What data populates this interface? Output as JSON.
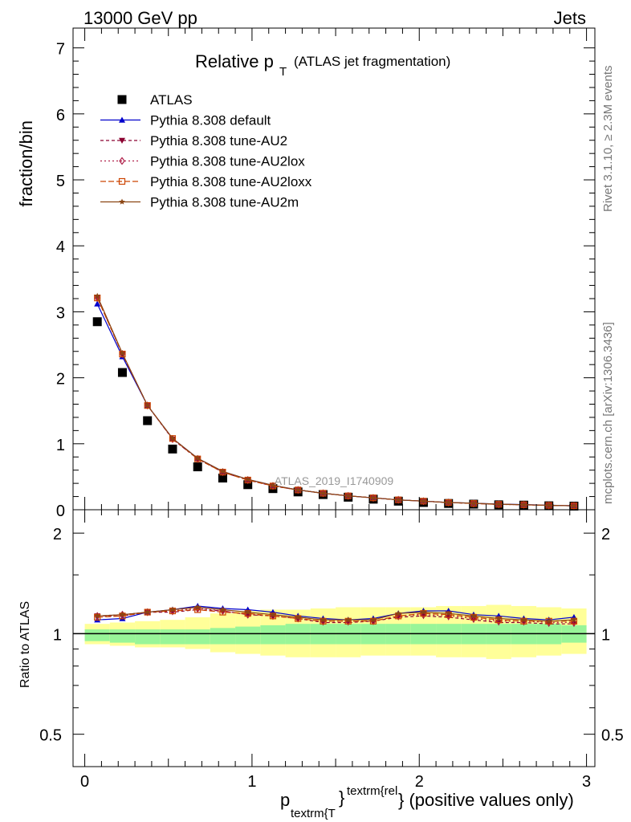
{
  "header": {
    "energy_label": "13000 GeV pp",
    "process_label": "Jets",
    "title_main": "Relative p",
    "title_sub": "T",
    "title_note": "(ATLAS jet fragmentation)",
    "ylabel": "fraction/bin",
    "ratio_ylabel": "Ratio to ATLAS",
    "xlabel_main": "p",
    "xlabel_sub": "textrm{T",
    "xlabel_sup": "textrm{rel",
    "xlabel_tail": "} (positive values only)",
    "xlabel_brace": "}",
    "analysis_id": "ATLAS_2019_I1740909",
    "side_rivet": "Rivet 3.1.10, ≥ 2.3M events",
    "side_mcplots": "mcplots.cern.ch [arXiv:1306.3436]"
  },
  "colors": {
    "data": "#000000",
    "default": "#0000cc",
    "au2": "#8b0030",
    "au2lox": "#b0204a",
    "au2loxx": "#cc4400",
    "au2m": "#8b4513",
    "band_inner": "#98f598",
    "band_outer": "#ffff99"
  },
  "chart_data": [
    {
      "type": "scatter",
      "title": "Relative p_T (ATLAS jet fragmentation)",
      "xlabel": "p_textrm{T}^textrm{rel} (positive values only)",
      "ylabel": "fraction/bin",
      "xlim": [
        -0.07,
        3.05
      ],
      "ylim": [
        0,
        7.3
      ],
      "yticks": [
        "0",
        "1",
        "2",
        "3",
        "4",
        "5",
        "6",
        "7"
      ],
      "xticks": [
        "0",
        "1",
        "2",
        "3"
      ],
      "legend_position": "top-left",
      "x": [
        0.075,
        0.225,
        0.375,
        0.525,
        0.675,
        0.825,
        0.975,
        1.125,
        1.275,
        1.425,
        1.575,
        1.725,
        1.875,
        2.025,
        2.175,
        2.325,
        2.475,
        2.625,
        2.775,
        2.925
      ],
      "series": [
        {
          "name": "ATLAS",
          "marker": "square",
          "values": [
            2.85,
            2.08,
            1.35,
            0.92,
            0.65,
            0.48,
            0.38,
            0.32,
            0.27,
            0.23,
            0.19,
            0.16,
            0.13,
            0.11,
            0.095,
            0.085,
            0.075,
            0.07,
            0.06,
            0.055
          ]
        },
        {
          "name": "Pythia 8.308 default",
          "marker": "triangle-up",
          "values": [
            3.12,
            2.32,
            1.58,
            1.08,
            0.78,
            0.58,
            0.46,
            0.37,
            0.3,
            0.25,
            0.21,
            0.18,
            0.15,
            0.13,
            0.11,
            0.1,
            0.085,
            0.078,
            0.068,
            0.06
          ]
        },
        {
          "name": "Pythia 8.308 tune-AU2",
          "marker": "triangle-down",
          "values": [
            3.22,
            2.36,
            1.58,
            1.07,
            0.77,
            0.57,
            0.45,
            0.36,
            0.3,
            0.25,
            0.21,
            0.18,
            0.15,
            0.13,
            0.11,
            0.095,
            0.082,
            0.076,
            0.066,
            0.06
          ]
        },
        {
          "name": "Pythia 8.308 tune-AU2lox",
          "marker": "diamond",
          "values": [
            3.21,
            2.36,
            1.58,
            1.07,
            0.77,
            0.57,
            0.45,
            0.36,
            0.3,
            0.25,
            0.21,
            0.18,
            0.15,
            0.13,
            0.11,
            0.095,
            0.082,
            0.076,
            0.066,
            0.06
          ]
        },
        {
          "name": "Pythia 8.308 tune-AU2loxx",
          "marker": "square-open",
          "values": [
            3.21,
            2.36,
            1.58,
            1.08,
            0.77,
            0.57,
            0.45,
            0.36,
            0.3,
            0.25,
            0.21,
            0.18,
            0.15,
            0.13,
            0.11,
            0.095,
            0.082,
            0.076,
            0.066,
            0.06
          ]
        },
        {
          "name": "Pythia 8.308 tune-AU2m",
          "marker": "star",
          "values": [
            3.24,
            2.37,
            1.58,
            1.08,
            0.78,
            0.58,
            0.46,
            0.37,
            0.3,
            0.25,
            0.21,
            0.18,
            0.15,
            0.13,
            0.11,
            0.098,
            0.084,
            0.077,
            0.067,
            0.06
          ]
        }
      ]
    },
    {
      "type": "line",
      "ylabel": "Ratio to ATLAS",
      "xlim": [
        -0.07,
        3.05
      ],
      "ylim": [
        0.4,
        2.35
      ],
      "yscale": "log",
      "yticks": [
        "0.5",
        "1",
        "2"
      ],
      "x": [
        0.075,
        0.225,
        0.375,
        0.525,
        0.675,
        0.825,
        0.975,
        1.125,
        1.275,
        1.425,
        1.575,
        1.725,
        1.875,
        2.025,
        2.175,
        2.325,
        2.475,
        2.625,
        2.775,
        2.925
      ],
      "bands": {
        "inner_low": [
          0.95,
          0.94,
          0.93,
          0.93,
          0.93,
          0.93,
          0.93,
          0.93,
          0.93,
          0.93,
          0.93,
          0.93,
          0.93,
          0.93,
          0.93,
          0.93,
          0.93,
          0.93,
          0.93,
          0.94
        ],
        "inner_high": [
          1.03,
          1.03,
          1.03,
          1.03,
          1.03,
          1.04,
          1.05,
          1.06,
          1.07,
          1.07,
          1.07,
          1.07,
          1.07,
          1.07,
          1.07,
          1.07,
          1.07,
          1.07,
          1.07,
          1.06
        ],
        "outer_low": [
          0.93,
          0.92,
          0.91,
          0.91,
          0.9,
          0.88,
          0.87,
          0.86,
          0.85,
          0.85,
          0.85,
          0.86,
          0.86,
          0.86,
          0.85,
          0.85,
          0.84,
          0.85,
          0.86,
          0.87
        ],
        "outer_high": [
          1.07,
          1.08,
          1.09,
          1.1,
          1.12,
          1.15,
          1.17,
          1.18,
          1.18,
          1.19,
          1.2,
          1.2,
          1.2,
          1.2,
          1.21,
          1.21,
          1.22,
          1.21,
          1.2,
          1.19
        ]
      },
      "series": [
        {
          "name": "Pythia 8.308 default",
          "values": [
            1.1,
            1.11,
            1.16,
            1.18,
            1.21,
            1.19,
            1.18,
            1.16,
            1.13,
            1.11,
            1.1,
            1.11,
            1.15,
            1.17,
            1.17,
            1.14,
            1.13,
            1.11,
            1.1,
            1.12
          ]
        },
        {
          "name": "Pythia 8.308 tune-AU2",
          "values": [
            1.13,
            1.13,
            1.16,
            1.16,
            1.18,
            1.17,
            1.14,
            1.13,
            1.11,
            1.08,
            1.08,
            1.09,
            1.12,
            1.13,
            1.12,
            1.1,
            1.08,
            1.08,
            1.07,
            1.07
          ]
        },
        {
          "name": "Pythia 8.308 tune-AU2lox",
          "values": [
            1.13,
            1.14,
            1.16,
            1.17,
            1.19,
            1.17,
            1.14,
            1.13,
            1.11,
            1.09,
            1.09,
            1.09,
            1.13,
            1.14,
            1.13,
            1.11,
            1.09,
            1.09,
            1.08,
            1.08
          ]
        },
        {
          "name": "Pythia 8.308 tune-AU2loxx",
          "values": [
            1.12,
            1.13,
            1.16,
            1.17,
            1.18,
            1.16,
            1.15,
            1.13,
            1.11,
            1.09,
            1.09,
            1.09,
            1.13,
            1.15,
            1.14,
            1.12,
            1.1,
            1.09,
            1.09,
            1.09
          ]
        },
        {
          "name": "Pythia 8.308 tune-AU2m",
          "values": [
            1.13,
            1.14,
            1.16,
            1.18,
            1.2,
            1.18,
            1.16,
            1.14,
            1.12,
            1.1,
            1.1,
            1.1,
            1.15,
            1.16,
            1.15,
            1.13,
            1.11,
            1.1,
            1.09,
            1.1
          ]
        }
      ]
    }
  ]
}
